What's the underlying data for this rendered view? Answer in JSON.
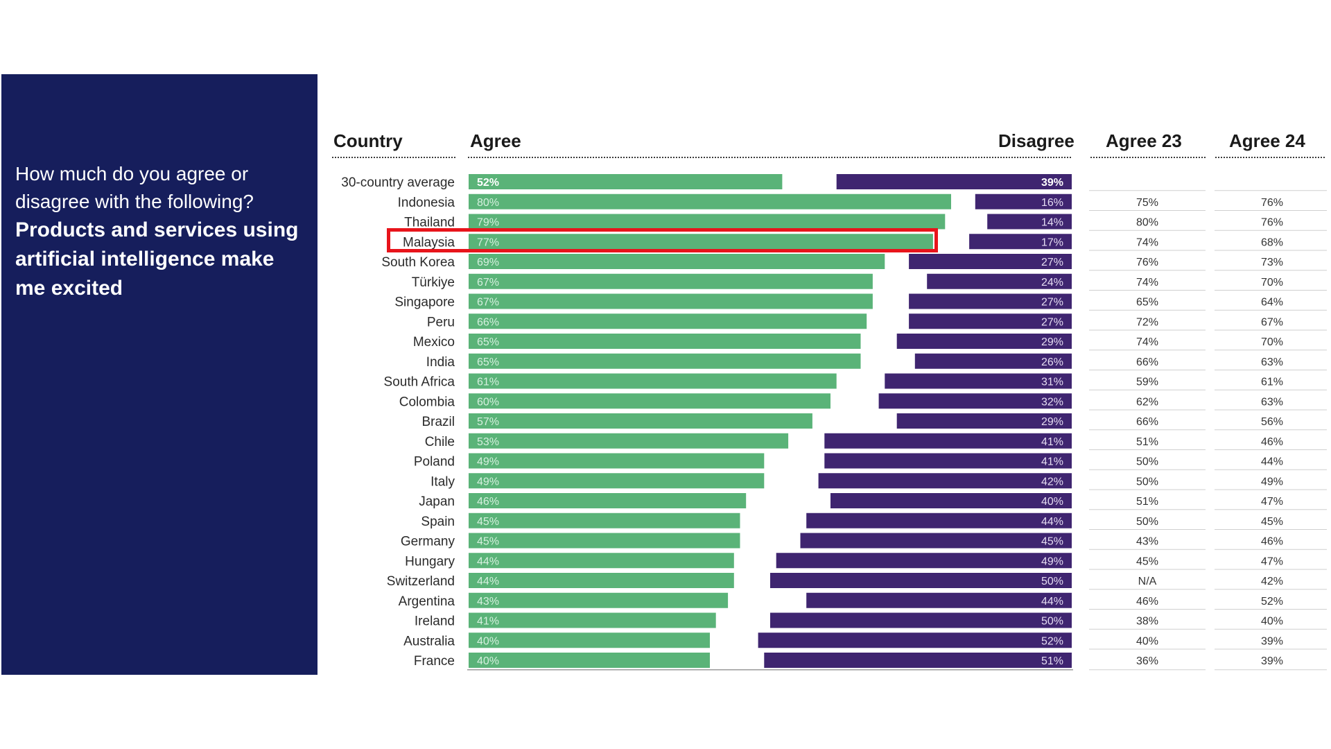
{
  "question": {
    "prompt": "How much do you agree or disagree with the following?",
    "statement": "Products and services using artificial intelligence make me excited"
  },
  "headers": {
    "country": "Country",
    "agree": "Agree",
    "disagree": "Disagree",
    "agree23": "Agree 23",
    "agree24": "Agree 24"
  },
  "colors": {
    "panel": "#161e5c",
    "agree_bar": "#5ab378",
    "disagree_bar": "#3f2570",
    "highlight": "#e8141b"
  },
  "highlighted_country": "Malaysia",
  "chart_data": {
    "type": "bar",
    "title": "",
    "xlim": [
      0,
      100
    ],
    "categories": [
      "30-country average",
      "Indonesia",
      "Thailand",
      "Malaysia",
      "South Korea",
      "Türkiye",
      "Singapore",
      "Peru",
      "Mexico",
      "India",
      "South Africa",
      "Colombia",
      "Brazil",
      "Chile",
      "Poland",
      "Italy",
      "Japan",
      "Spain",
      "Germany",
      "Hungary",
      "Switzerland",
      "Argentina",
      "Ireland",
      "Australia",
      "France"
    ],
    "series": [
      {
        "name": "Agree",
        "values": [
          52,
          80,
          79,
          77,
          69,
          67,
          67,
          66,
          65,
          65,
          61,
          60,
          57,
          53,
          49,
          49,
          46,
          45,
          45,
          44,
          44,
          43,
          41,
          40,
          40
        ]
      },
      {
        "name": "Disagree",
        "values": [
          39,
          16,
          14,
          17,
          27,
          24,
          27,
          27,
          29,
          26,
          31,
          32,
          29,
          41,
          41,
          42,
          40,
          44,
          45,
          49,
          50,
          44,
          50,
          52,
          51
        ]
      }
    ],
    "agree23": [
      "",
      "75%",
      "80%",
      "74%",
      "76%",
      "74%",
      "65%",
      "72%",
      "74%",
      "66%",
      "59%",
      "62%",
      "66%",
      "51%",
      "50%",
      "50%",
      "51%",
      "50%",
      "43%",
      "45%",
      "N/A",
      "46%",
      "38%",
      "40%",
      "36%"
    ],
    "agree24": [
      "",
      "76%",
      "76%",
      "68%",
      "73%",
      "70%",
      "64%",
      "67%",
      "70%",
      "63%",
      "61%",
      "63%",
      "56%",
      "46%",
      "44%",
      "49%",
      "47%",
      "45%",
      "46%",
      "47%",
      "42%",
      "52%",
      "40%",
      "39%",
      "39%"
    ]
  }
}
